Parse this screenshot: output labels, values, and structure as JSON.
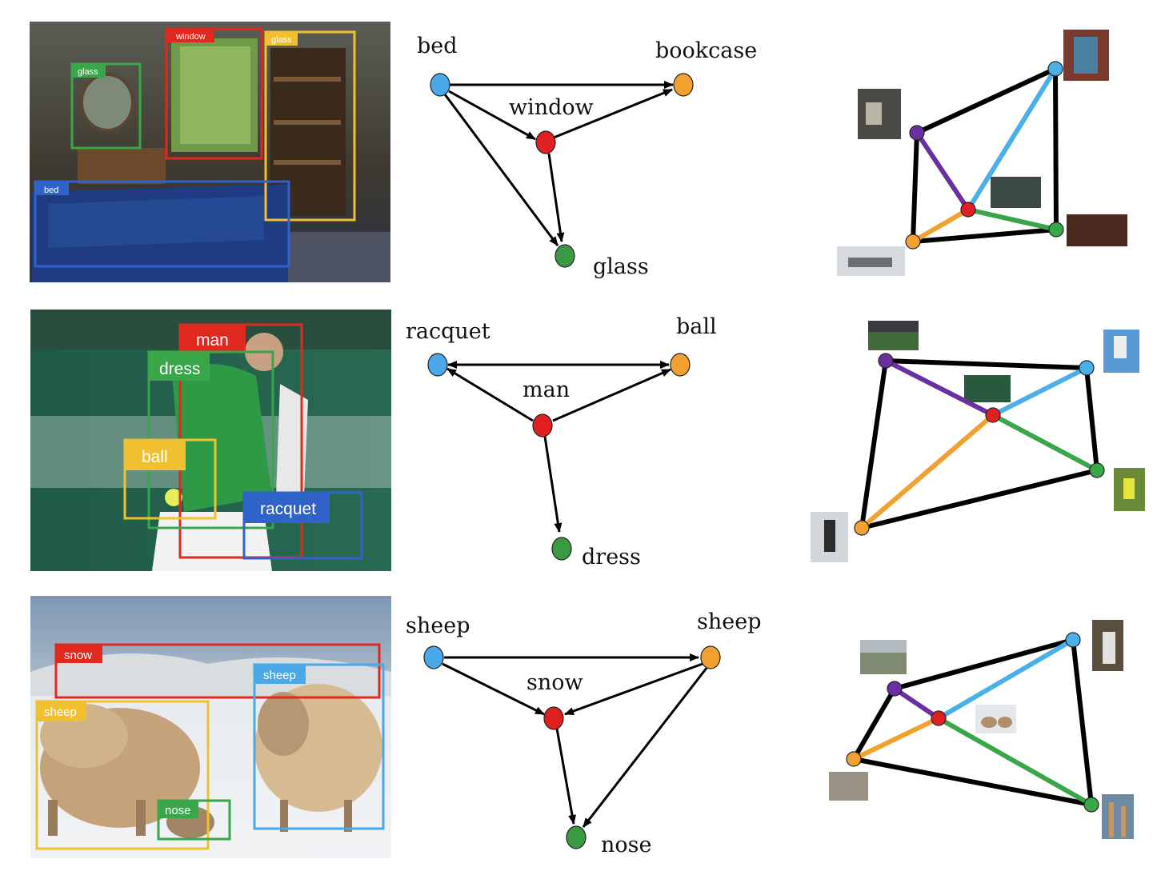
{
  "rows": [
    {
      "id": "bedroom",
      "detections": [
        {
          "label": "window",
          "color": "#e0281e"
        },
        {
          "label": "glass",
          "color": "#f0c030"
        },
        {
          "label": "glass",
          "color": "#3aa64a"
        },
        {
          "label": "bed",
          "color": "#2f63c9"
        }
      ],
      "graph": {
        "nodes": [
          {
            "label": "bed",
            "color": "#4aa8e8"
          },
          {
            "label": "bookcase",
            "color": "#f2a030"
          },
          {
            "label": "window",
            "color": "#e02020"
          },
          {
            "label": "glass",
            "color": "#3a9a44"
          }
        ]
      },
      "similarity_graph": {
        "nodes": [
          "purple",
          "blue",
          "red",
          "orange",
          "green"
        ]
      }
    },
    {
      "id": "tennis",
      "detections": [
        {
          "label": "man",
          "color": "#e0281e"
        },
        {
          "label": "dress",
          "color": "#3aa64a"
        },
        {
          "label": "ball",
          "color": "#f0c030"
        },
        {
          "label": "racquet",
          "color": "#2f63c9"
        }
      ],
      "graph": {
        "nodes": [
          {
            "label": "racquet",
            "color": "#4aa8e8"
          },
          {
            "label": "ball",
            "color": "#f2a030"
          },
          {
            "label": "man",
            "color": "#e02020"
          },
          {
            "label": "dress",
            "color": "#3a9a44"
          }
        ]
      },
      "similarity_graph": {
        "nodes": [
          "purple",
          "blue",
          "red",
          "green",
          "orange"
        ]
      }
    },
    {
      "id": "sheep",
      "detections": [
        {
          "label": "snow",
          "color": "#e0281e"
        },
        {
          "label": "sheep",
          "color": "#4aa8e8"
        },
        {
          "label": "sheep",
          "color": "#f0c030"
        },
        {
          "label": "nose",
          "color": "#3aa64a"
        }
      ],
      "graph": {
        "nodes": [
          {
            "label": "sheep",
            "color": "#4aa8e8"
          },
          {
            "label": "sheep",
            "color": "#f2a030"
          },
          {
            "label": "snow",
            "color": "#e02020"
          },
          {
            "label": "nose",
            "color": "#3a9a44"
          }
        ]
      },
      "similarity_graph": {
        "nodes": [
          "purple",
          "blue",
          "red",
          "orange",
          "green"
        ]
      }
    }
  ],
  "palette": {
    "purple": "#6a2fa0",
    "blue": "#4ab0e8",
    "red": "#e02020",
    "orange": "#f2a030",
    "green": "#3aa64a",
    "edge": "#000000"
  }
}
